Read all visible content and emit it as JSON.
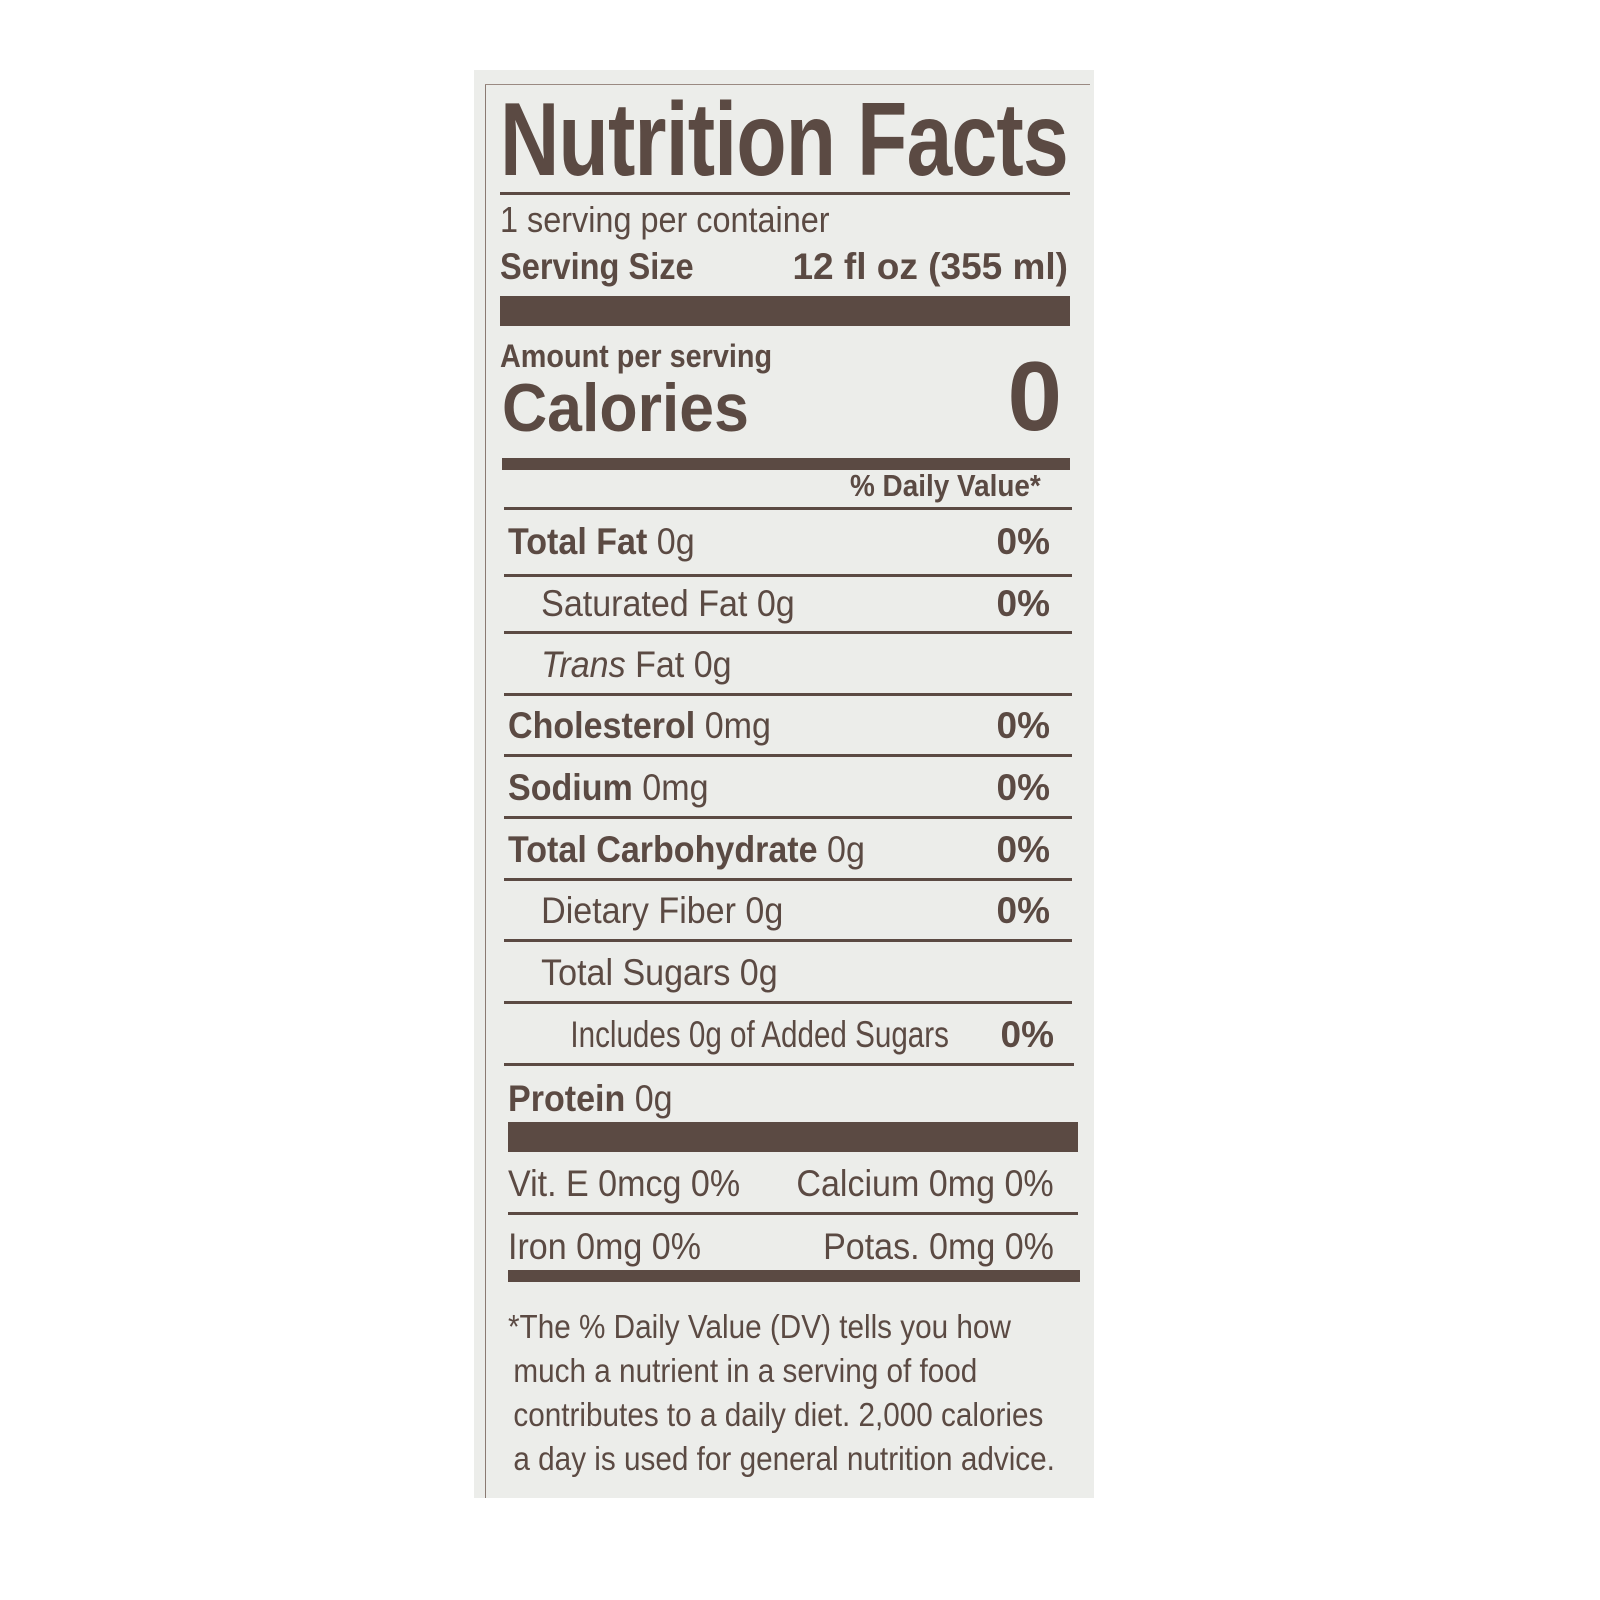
{
  "label": {
    "title": "Nutrition Facts",
    "servings_per_container": "1 serving per container",
    "serving_size_label": "Serving Size",
    "serving_size_value": "12 fl oz (355 ml)",
    "amount_per_serving": "Amount per serving",
    "calories_label": "Calories",
    "calories_value": "0",
    "daily_value_header": "% Daily Value*",
    "nutrients": [
      {
        "name": "Total Fat",
        "amount": "0g",
        "dv": "0%"
      },
      {
        "name": "Saturated Fat 0g",
        "amount": "",
        "dv": "0%"
      },
      {
        "name_italic": "Trans",
        "name": " Fat 0g",
        "amount": "",
        "dv": ""
      },
      {
        "name": "Cholesterol",
        "amount": "0mg",
        "dv": "0%"
      },
      {
        "name": "Sodium",
        "amount": "0mg",
        "dv": "0%"
      },
      {
        "name": "Total Carbohydrate",
        "amount": "0g",
        "dv": "0%"
      },
      {
        "name": "Dietary Fiber 0g",
        "amount": "",
        "dv": "0%"
      },
      {
        "name": "Total Sugars 0g",
        "amount": "",
        "dv": ""
      },
      {
        "name": "Includes 0g of Added Sugars",
        "amount": "",
        "dv": "0%"
      },
      {
        "name": "Protein",
        "amount": "0g",
        "dv": ""
      }
    ],
    "vitamins": [
      {
        "left": "Vit. E 0mcg 0%",
        "right": "Calcium 0mg 0%"
      },
      {
        "left": "Iron 0mg 0%",
        "right": "Potas. 0mg 0%"
      }
    ],
    "footnote": [
      "*The % Daily Value (DV) tells you how",
      "much a nutrient in a serving of food",
      "contributes to a daily diet. 2,000 calories",
      "a day is used for general nutrition advice."
    ]
  },
  "colors": {
    "ink": "#5b4a43",
    "panel": "#ecedea"
  }
}
